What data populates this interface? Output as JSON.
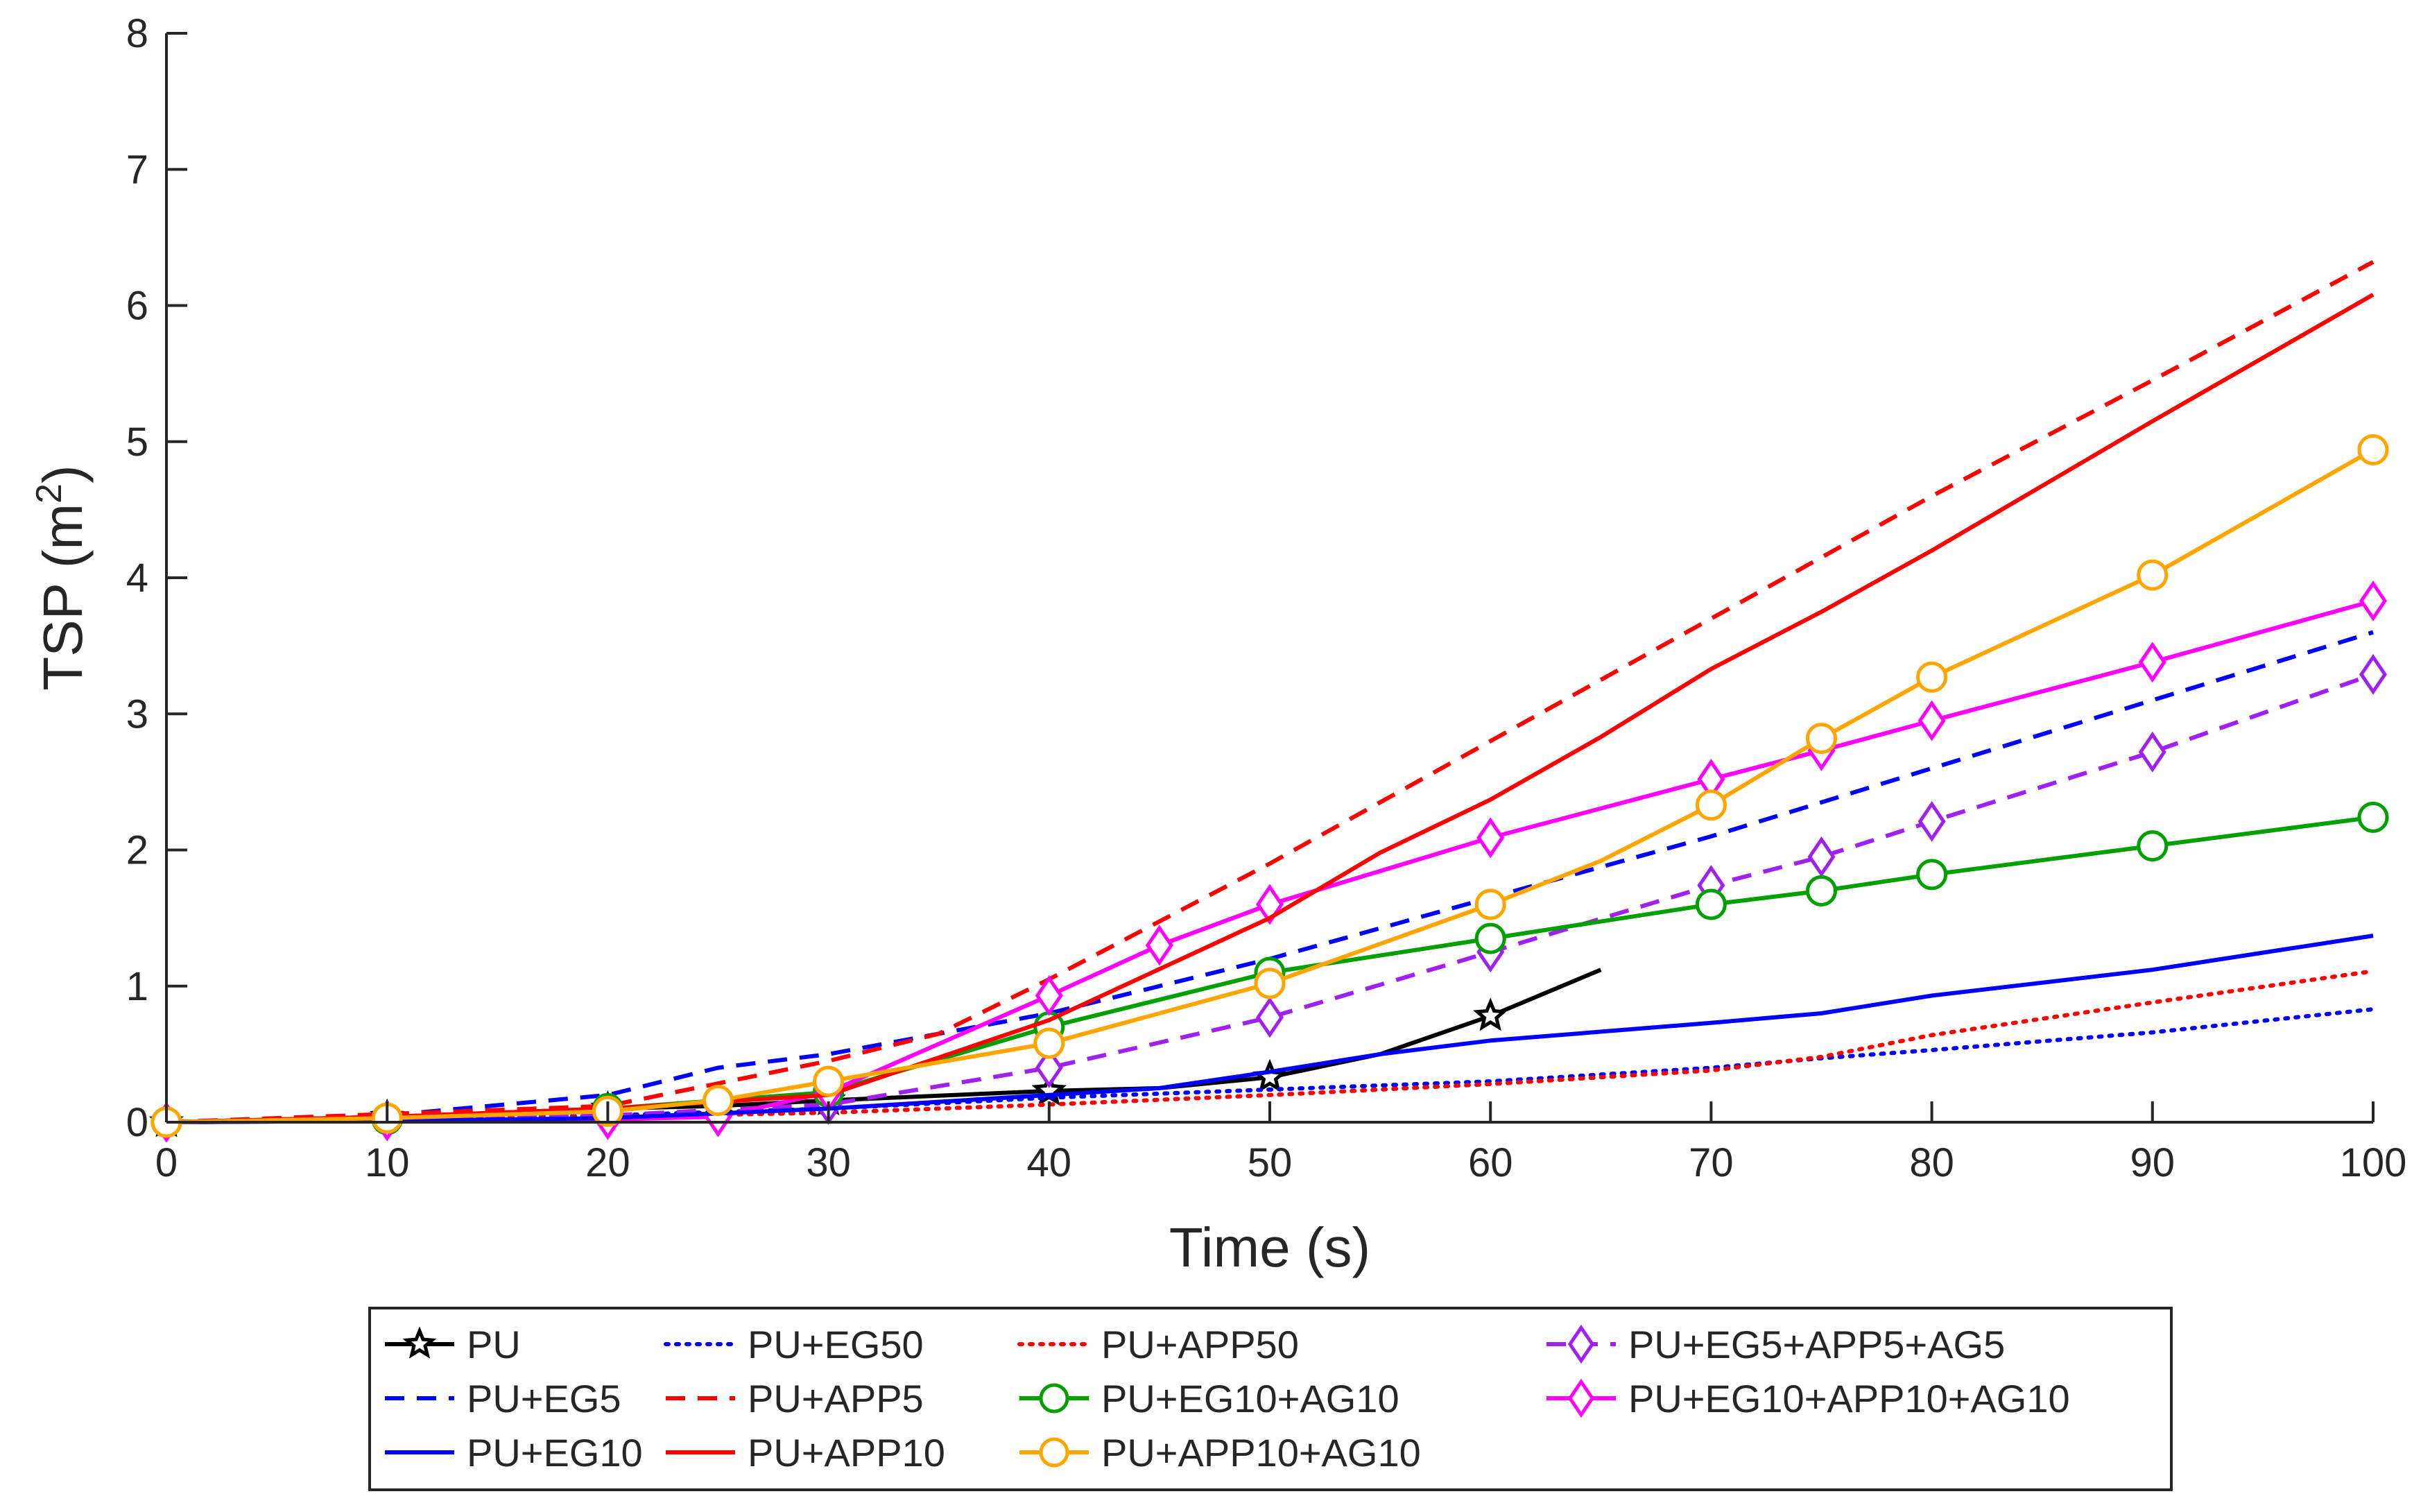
{
  "chart_data": {
    "type": "line",
    "title": "",
    "xlabel": "Time (s)",
    "ylabel": "TSP (m",
    "ylabel_sup": "2",
    "ylabel_close": ")",
    "xlim": [
      0,
      100
    ],
    "ylim": [
      0,
      8
    ],
    "xticks": [
      "0",
      "10",
      "20",
      "30",
      "40",
      "50",
      "60",
      "70",
      "80",
      "90",
      "100"
    ],
    "yticks": [
      "0",
      "1",
      "2",
      "3",
      "4",
      "5",
      "6",
      "7",
      "8"
    ],
    "grid": false,
    "legend_position": "bottom",
    "series": [
      {
        "name": "PU",
        "color": "#000000",
        "dash": "solid",
        "marker": "star",
        "x": [
          0,
          10,
          20,
          25,
          30,
          40,
          45,
          50,
          55,
          60,
          65
        ],
        "y": [
          0,
          0.04,
          0.1,
          0.12,
          0.16,
          0.23,
          0.25,
          0.33,
          0.5,
          0.78,
          1.12
        ],
        "marker_x": [
          0,
          10,
          20,
          25,
          30,
          40,
          50,
          60
        ],
        "marker_y": [
          0,
          0.04,
          0.1,
          0.12,
          0.16,
          0.23,
          0.33,
          0.78
        ]
      },
      {
        "name": "PU+EG50",
        "color": "#0000ff",
        "dash": "dotted",
        "marker": "none",
        "x": [
          0,
          10,
          20,
          30,
          40,
          50,
          60,
          70,
          75,
          80,
          90,
          100
        ],
        "y": [
          0,
          0.02,
          0.05,
          0.1,
          0.18,
          0.24,
          0.3,
          0.4,
          0.47,
          0.53,
          0.66,
          0.83
        ]
      },
      {
        "name": "PU+APP50",
        "color": "#ff0000",
        "dash": "dotted",
        "marker": "none",
        "x": [
          0,
          10,
          20,
          30,
          40,
          50,
          60,
          70,
          75,
          80,
          90,
          100
        ],
        "y": [
          0,
          0.02,
          0.04,
          0.07,
          0.13,
          0.2,
          0.28,
          0.38,
          0.48,
          0.64,
          0.88,
          1.11
        ]
      },
      {
        "name": "PU+EG5+APP5+AG5",
        "color": "#a020f0",
        "dash": "dashed",
        "marker": "diamond",
        "x": [
          0,
          10,
          20,
          30,
          40,
          50,
          60,
          70,
          75,
          80,
          90,
          100
        ],
        "y": [
          0,
          0.01,
          0.05,
          0.13,
          0.4,
          0.77,
          1.25,
          1.74,
          1.95,
          2.21,
          2.72,
          3.29
        ]
      },
      {
        "name": "PU+EG5",
        "color": "#0000ff",
        "dash": "dashed",
        "marker": "none",
        "x": [
          0,
          10,
          20,
          25,
          30,
          40,
          50,
          60,
          70,
          80,
          90,
          100
        ],
        "y": [
          0,
          0.05,
          0.2,
          0.4,
          0.5,
          0.8,
          1.2,
          1.65,
          2.1,
          2.6,
          3.1,
          3.6
        ]
      },
      {
        "name": "PU+APP5",
        "color": "#ff0000",
        "dash": "dashed",
        "marker": "none",
        "x": [
          0,
          10,
          20,
          30,
          35,
          40,
          50,
          60,
          70,
          80,
          90,
          100
        ],
        "y": [
          0,
          0.06,
          0.12,
          0.45,
          0.65,
          1.05,
          1.9,
          2.8,
          3.7,
          4.6,
          5.45,
          6.32
        ]
      },
      {
        "name": "PU+EG10+AG10",
        "color": "#00a000",
        "dash": "solid",
        "marker": "circle",
        "x": [
          0,
          10,
          20,
          30,
          40,
          50,
          60,
          70,
          75,
          80,
          90,
          100
        ],
        "y": [
          0,
          0.02,
          0.1,
          0.22,
          0.7,
          1.1,
          1.35,
          1.6,
          1.7,
          1.82,
          2.03,
          2.24
        ]
      },
      {
        "name": "PU+EG10+APP10+AG10",
        "color": "#ff00ff",
        "dash": "solid",
        "marker": "diamond",
        "x": [
          0,
          10,
          20,
          25,
          30,
          40,
          45,
          50,
          60,
          70,
          75,
          80,
          90,
          100
        ],
        "y": [
          0,
          0.01,
          0.02,
          0.04,
          0.22,
          0.93,
          1.3,
          1.6,
          2.09,
          2.52,
          2.73,
          2.95,
          3.38,
          3.83
        ]
      },
      {
        "name": "PU+EG10",
        "color": "#0000ff",
        "dash": "solid",
        "marker": "none",
        "x": [
          0,
          10,
          20,
          30,
          40,
          45,
          50,
          55,
          60,
          70,
          75,
          80,
          90,
          100
        ],
        "y": [
          0,
          0.01,
          0.03,
          0.1,
          0.2,
          0.25,
          0.37,
          0.5,
          0.6,
          0.73,
          0.8,
          0.93,
          1.12,
          1.37
        ]
      },
      {
        "name": "PU+APP10",
        "color": "#ff0000",
        "dash": "solid",
        "marker": "none",
        "x": [
          0,
          10,
          20,
          30,
          40,
          50,
          55,
          60,
          65,
          70,
          75,
          80,
          90,
          100
        ],
        "y": [
          0,
          0.04,
          0.1,
          0.2,
          0.75,
          1.5,
          1.98,
          2.37,
          2.83,
          3.33,
          3.75,
          4.2,
          5.15,
          6.08
        ]
      },
      {
        "name": "PU+APP10+AG10",
        "color": "#ffa500",
        "dash": "solid",
        "marker": "circle",
        "x": [
          0,
          10,
          20,
          25,
          30,
          40,
          50,
          60,
          65,
          70,
          75,
          80,
          90,
          100
        ],
        "y": [
          0,
          0.03,
          0.08,
          0.16,
          0.3,
          0.58,
          1.02,
          1.6,
          1.92,
          2.33,
          2.82,
          3.27,
          4.02,
          4.94
        ],
        "marker_x": [
          0,
          10,
          20,
          25,
          30,
          40,
          50,
          60,
          70,
          75,
          80,
          90,
          100
        ],
        "marker_y": [
          0,
          0.03,
          0.08,
          0.16,
          0.3,
          0.58,
          1.02,
          1.6,
          2.33,
          2.82,
          3.27,
          4.02,
          4.94
        ]
      }
    ],
    "legend_layout": [
      [
        "PU",
        "PU+EG50",
        "PU+APP50",
        "PU+EG5+APP5+AG5"
      ],
      [
        "PU+EG5",
        "PU+APP5",
        "PU+EG10+AG10",
        "PU+EG10+APP10+AG10"
      ],
      [
        "PU+EG10",
        "PU+APP10",
        "PU+APP10+AG10"
      ]
    ]
  }
}
